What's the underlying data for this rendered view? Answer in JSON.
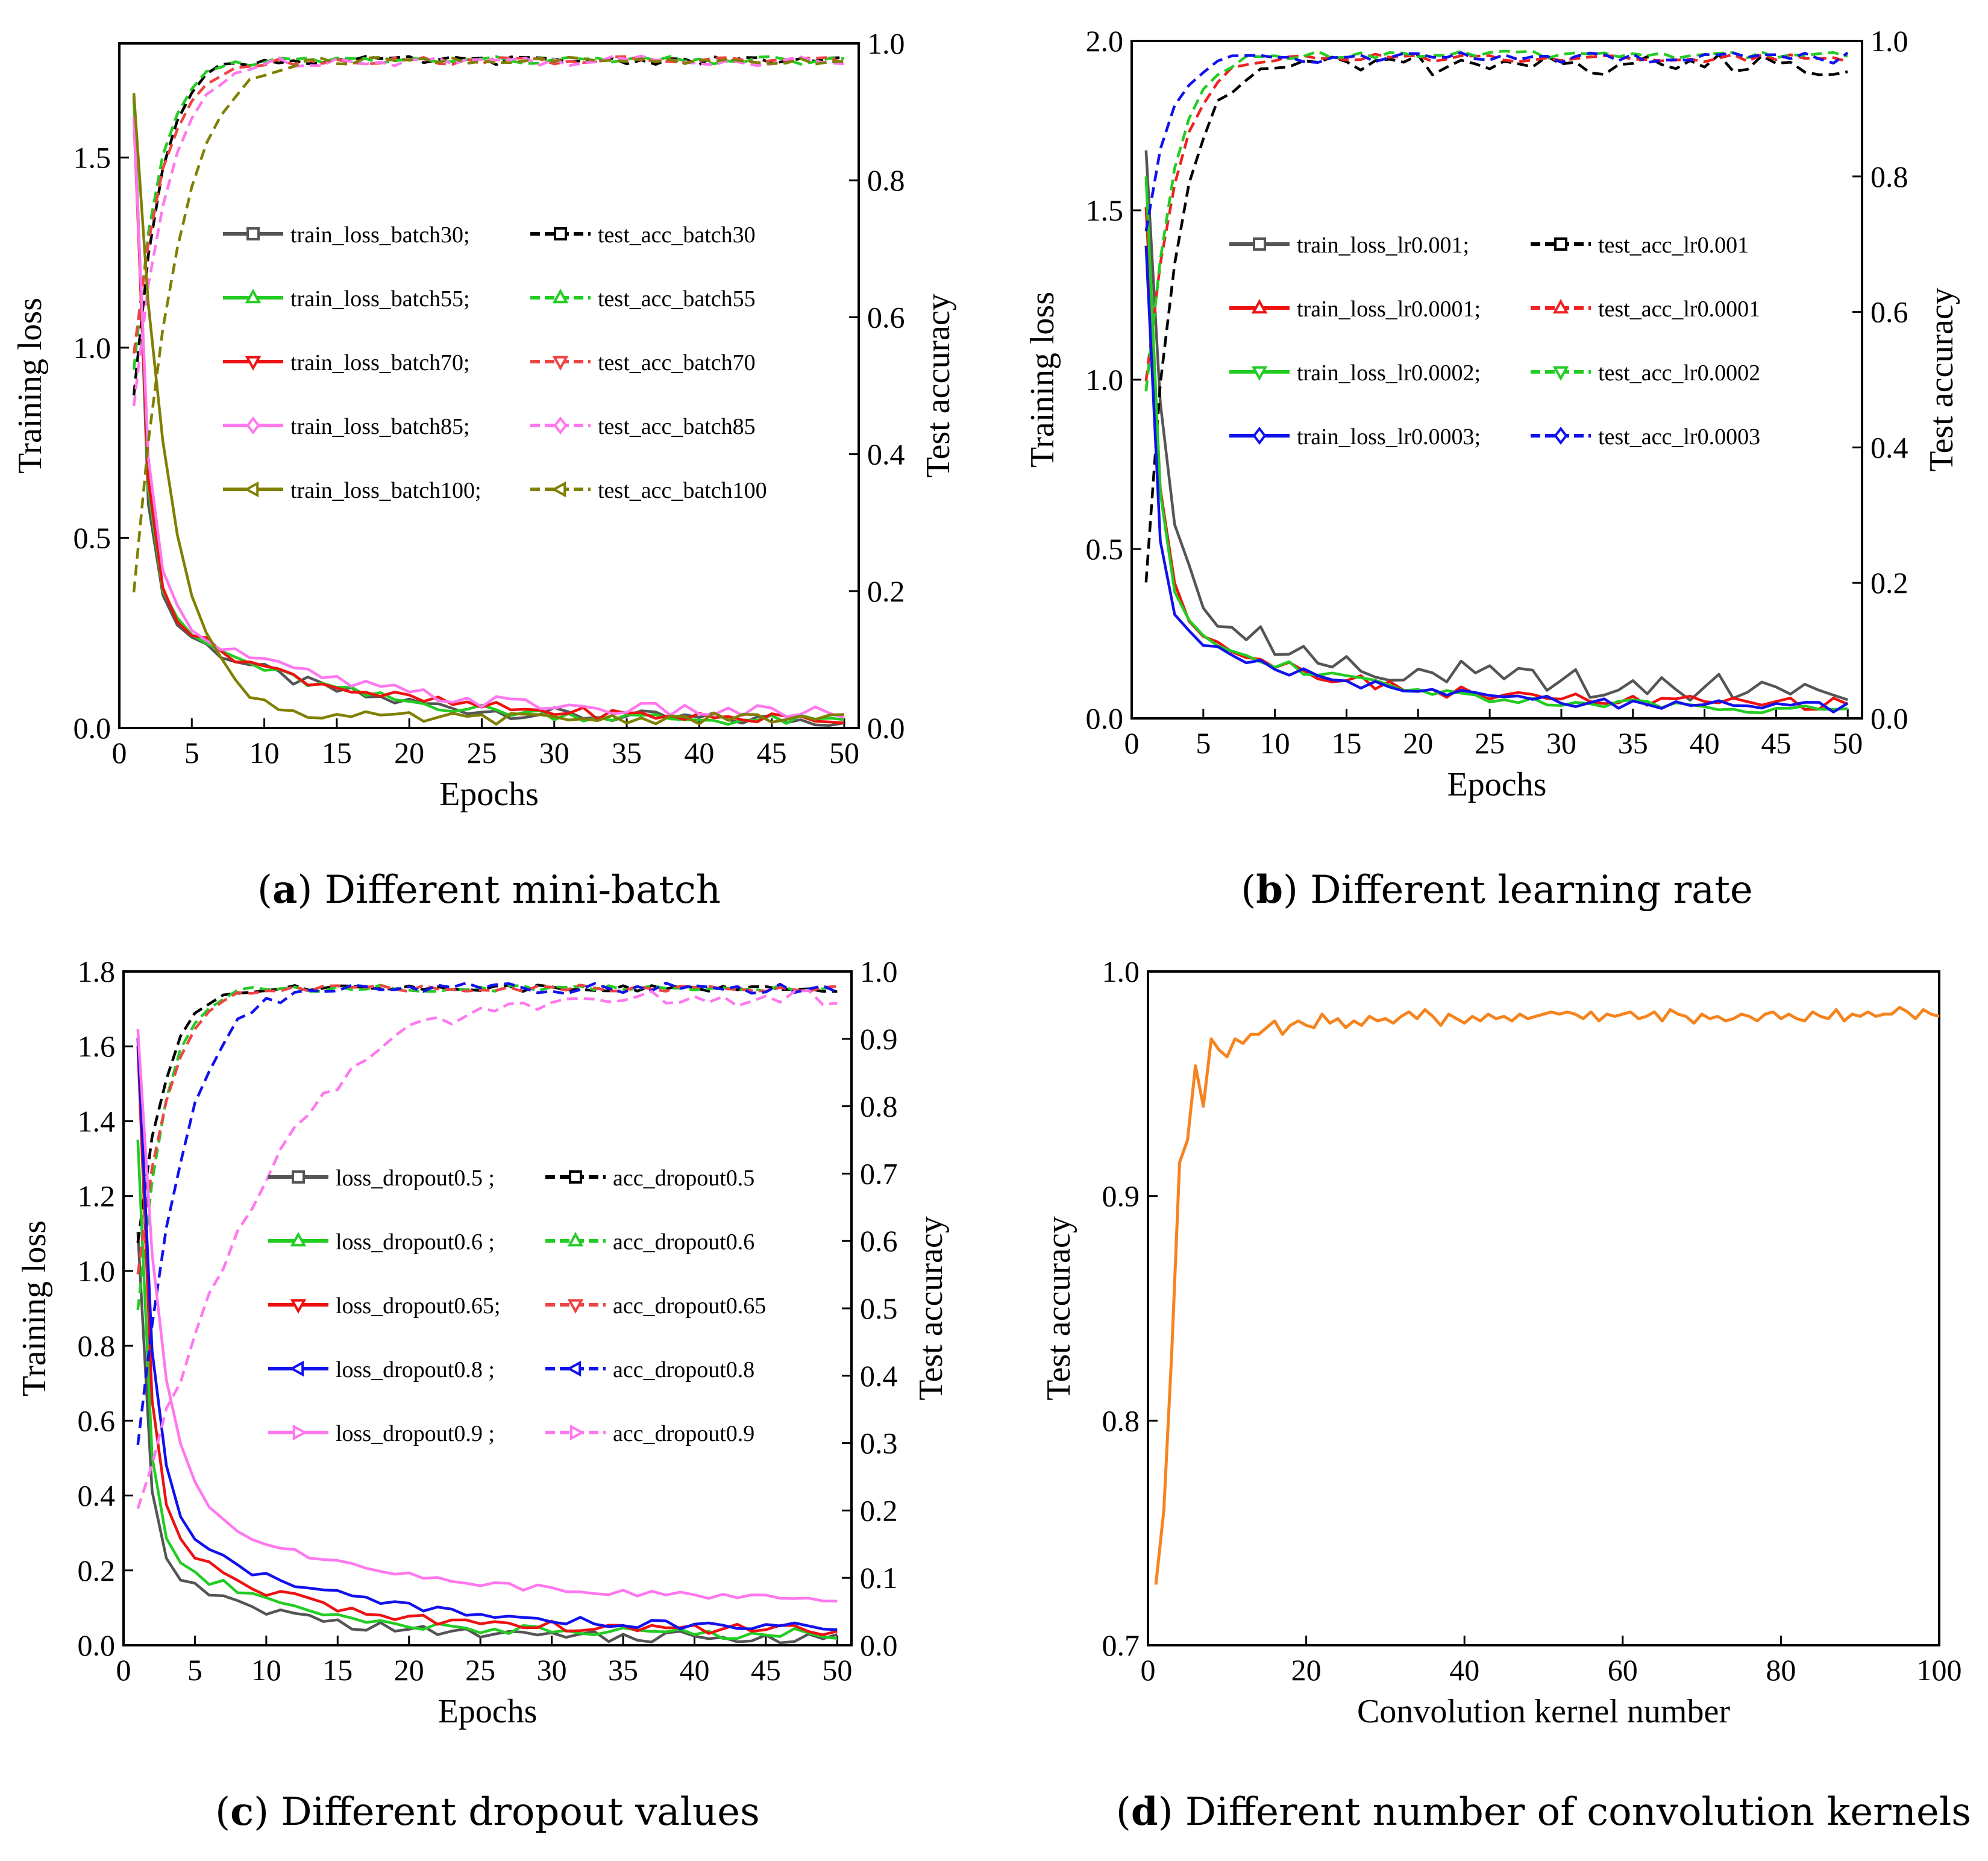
{
  "chart_data": [
    {
      "id": "a",
      "type": "line",
      "caption": {
        "letter": "a",
        "text": "Different mini-batch"
      },
      "xlabel": "Epochs",
      "ylabel": "Training loss",
      "y2label": "Test accuracy",
      "xlim": [
        0,
        51
      ],
      "ylim": [
        0,
        1.8
      ],
      "y2lim": [
        0,
        1.0
      ],
      "xticks": [
        0,
        5,
        10,
        15,
        20,
        25,
        30,
        35,
        40,
        45,
        50
      ],
      "yticks": [
        "0.0",
        "0.5",
        "1.0",
        "1.5"
      ],
      "y2ticks": [
        "0.0",
        "0.2",
        "0.4",
        "0.6",
        "0.8",
        "1.0"
      ],
      "legend_position": "center",
      "series": [
        {
          "name": "train_loss_batch30;",
          "color": "#555555",
          "axis": "left",
          "dash": false,
          "marker": "square",
          "shape": "loss",
          "p": [
            1.65,
            0.3,
            0.1,
            0.018
          ],
          "noise": 0.012
        },
        {
          "name": "test_acc_batch30",
          "color": "#000000",
          "axis": "right",
          "dash": true,
          "marker": "square",
          "shape": "acc",
          "p": [
            0.48,
            0.965,
            0.55,
            0.975
          ],
          "noise": 0.006
        },
        {
          "name": "train_loss_batch55;",
          "color": "#22cc22",
          "axis": "left",
          "dash": false,
          "marker": "tri-up",
          "shape": "loss",
          "p": [
            1.66,
            0.32,
            0.095,
            0.015
          ],
          "noise": 0.01
        },
        {
          "name": "test_acc_batch55",
          "color": "#22cc22",
          "axis": "right",
          "dash": true,
          "marker": "tri-up",
          "shape": "acc",
          "p": [
            0.52,
            0.965,
            0.55,
            0.975
          ],
          "noise": 0.006
        },
        {
          "name": "train_loss_batch70;",
          "color": "#ee1111",
          "axis": "left",
          "dash": false,
          "marker": "tri-down",
          "shape": "loss",
          "p": [
            1.6,
            0.35,
            0.09,
            0.02
          ],
          "noise": 0.01
        },
        {
          "name": "test_acc_batch70",
          "color": "#ee4444",
          "axis": "right",
          "dash": true,
          "marker": "tri-down",
          "shape": "acc",
          "p": [
            0.55,
            0.965,
            0.45,
            0.975
          ],
          "noise": 0.006
        },
        {
          "name": "train_loss_batch85;",
          "color": "#ff77ee",
          "axis": "left",
          "dash": false,
          "marker": "diamond",
          "shape": "loss",
          "p": [
            1.6,
            0.4,
            0.09,
            0.035
          ],
          "noise": 0.012
        },
        {
          "name": "test_acc_batch85",
          "color": "#ff77ee",
          "axis": "right",
          "dash": true,
          "marker": "diamond",
          "shape": "acc",
          "p": [
            0.47,
            0.965,
            0.4,
            0.975
          ],
          "noise": 0.008
        },
        {
          "name": "train_loss_batch100;",
          "color": "#7f7f00",
          "axis": "left",
          "dash": false,
          "marker": "tri-left",
          "shape": "loss",
          "p": [
            1.66,
            1.1,
            0.35,
            0.025
          ],
          "noise": 0.01
        },
        {
          "name": "test_acc_batch100",
          "color": "#7f7f00",
          "axis": "right",
          "dash": true,
          "marker": "tri-left",
          "shape": "acc",
          "p": [
            0.2,
            0.965,
            0.32,
            0.975
          ],
          "noise": 0.006
        }
      ]
    },
    {
      "id": "b",
      "type": "line",
      "caption": {
        "letter": "b",
        "text": "Different learning rate"
      },
      "xlabel": "Epochs",
      "ylabel": "Training loss",
      "y2label": "Test accuracy",
      "xlim": [
        0,
        51
      ],
      "ylim": [
        0,
        2.0
      ],
      "y2lim": [
        0,
        1.0
      ],
      "xticks": [
        0,
        5,
        10,
        15,
        20,
        25,
        30,
        35,
        40,
        45,
        50
      ],
      "yticks": [
        "0.0",
        "0.5",
        "1.0",
        "1.5",
        "2.0"
      ],
      "y2ticks": [
        "0.0",
        "0.2",
        "0.4",
        "0.6",
        "0.8",
        "1.0"
      ],
      "legend_position": "center",
      "series": [
        {
          "name": "train_loss_lr0.001;",
          "color": "#555555",
          "axis": "left",
          "dash": false,
          "marker": "square",
          "shape": "loss",
          "p": [
            1.7,
            0.55,
            0.1,
            0.09
          ],
          "noise": 0.03
        },
        {
          "name": "test_acc_lr0.001",
          "color": "#000000",
          "axis": "right",
          "dash": true,
          "marker": "square",
          "shape": "acc",
          "p": [
            0.2,
            0.955,
            0.45,
            0.965
          ],
          "noise": 0.015
        },
        {
          "name": "train_loss_lr0.0001;",
          "color": "#ee1111",
          "axis": "left",
          "dash": false,
          "marker": "tri-up",
          "shape": "loss",
          "p": [
            1.5,
            0.4,
            0.095,
            0.04
          ],
          "noise": 0.012
        },
        {
          "name": "test_acc_lr0.0001",
          "color": "#ee2222",
          "axis": "right",
          "dash": true,
          "marker": "tri-up",
          "shape": "acc",
          "p": [
            0.5,
            0.965,
            0.45,
            0.975
          ],
          "noise": 0.006
        },
        {
          "name": "train_loss_lr0.0002;",
          "color": "#22cc22",
          "axis": "left",
          "dash": false,
          "marker": "tri-down",
          "shape": "loss",
          "p": [
            1.6,
            0.35,
            0.09,
            0.025
          ],
          "noise": 0.01
        },
        {
          "name": "test_acc_lr0.0002",
          "color": "#22cc22",
          "axis": "right",
          "dash": true,
          "marker": "tri-down",
          "shape": "acc",
          "p": [
            0.48,
            0.965,
            0.5,
            0.98
          ],
          "noise": 0.006
        },
        {
          "name": "train_loss_lr0.0003;",
          "color": "#1111ee",
          "axis": "left",
          "dash": false,
          "marker": "diamond",
          "shape": "loss",
          "p": [
            1.4,
            0.3,
            0.09,
            0.03
          ],
          "noise": 0.01
        },
        {
          "name": "test_acc_lr0.0003",
          "color": "#1111ee",
          "axis": "right",
          "dash": true,
          "marker": "diamond",
          "shape": "acc",
          "p": [
            0.72,
            0.965,
            0.6,
            0.975
          ],
          "noise": 0.008
        }
      ]
    },
    {
      "id": "c",
      "type": "line",
      "caption": {
        "letter": "c",
        "text": "Different dropout values"
      },
      "xlabel": "Epochs",
      "ylabel": "Training loss",
      "y2label": "Test accuracy",
      "xlim": [
        0,
        51
      ],
      "ylim": [
        0,
        1.8
      ],
      "y2lim": [
        0,
        1.0
      ],
      "xticks": [
        0,
        5,
        10,
        15,
        20,
        25,
        30,
        35,
        40,
        45,
        50
      ],
      "yticks": [
        "0.0",
        "0.2",
        "0.4",
        "0.6",
        "0.8",
        "1.0",
        "1.2",
        "1.4",
        "1.6",
        "1.8"
      ],
      "y2ticks": [
        "0.0",
        "0.1",
        "0.2",
        "0.3",
        "0.4",
        "0.5",
        "0.6",
        "0.7",
        "0.8",
        "0.9",
        "1.0"
      ],
      "legend_position": "center",
      "series": [
        {
          "name": "loss_dropout0.5 ;",
          "color": "#555555",
          "axis": "left",
          "dash": false,
          "marker": "square",
          "shape": "loss",
          "p": [
            1.1,
            0.3,
            0.12,
            0.02
          ],
          "noise": 0.01
        },
        {
          "name": "acc_dropout0.5",
          "color": "#000000",
          "axis": "right",
          "dash": true,
          "marker": "square",
          "shape": "acc",
          "p": [
            0.6,
            0.97,
            0.5,
            0.975
          ],
          "noise": 0.005
        },
        {
          "name": "loss_dropout0.6 ;",
          "color": "#22cc22",
          "axis": "left",
          "dash": false,
          "marker": "tri-up",
          "shape": "loss",
          "p": [
            1.35,
            0.3,
            0.12,
            0.03
          ],
          "noise": 0.01
        },
        {
          "name": "acc_dropout0.6",
          "color": "#22cc22",
          "axis": "right",
          "dash": true,
          "marker": "tri-up",
          "shape": "acc",
          "p": [
            0.5,
            0.97,
            0.5,
            0.975
          ],
          "noise": 0.005
        },
        {
          "name": "loss_dropout0.65;",
          "color": "#ee1111",
          "axis": "left",
          "dash": false,
          "marker": "tri-down",
          "shape": "loss",
          "p": [
            1.6,
            0.35,
            0.12,
            0.04
          ],
          "noise": 0.01
        },
        {
          "name": "acc_dropout0.65",
          "color": "#ee4444",
          "axis": "right",
          "dash": true,
          "marker": "tri-down",
          "shape": "acc",
          "p": [
            0.55,
            0.97,
            0.45,
            0.975
          ],
          "noise": 0.005
        },
        {
          "name": "loss_dropout0.8 ;",
          "color": "#1111ee",
          "axis": "left",
          "dash": false,
          "marker": "tri-left",
          "shape": "loss",
          "p": [
            1.62,
            0.45,
            0.09,
            0.045
          ],
          "noise": 0.008
        },
        {
          "name": "acc_dropout0.8",
          "color": "#1111ee",
          "axis": "right",
          "dash": true,
          "marker": "tri-left",
          "shape": "acc",
          "p": [
            0.3,
            0.97,
            0.3,
            0.975
          ],
          "noise": 0.008
        },
        {
          "name": "loss_dropout0.9 ;",
          "color": "#ff77ee",
          "axis": "left",
          "dash": false,
          "marker": "tri-right",
          "shape": "loss",
          "p": [
            1.65,
            0.7,
            0.08,
            0.12
          ],
          "noise": 0.006
        },
        {
          "name": "acc_dropout0.9",
          "color": "#ff77ee",
          "axis": "right",
          "dash": true,
          "marker": "tri-right",
          "shape": "acc",
          "p": [
            0.21,
            0.965,
            0.09,
            0.96
          ],
          "noise": 0.012
        }
      ]
    },
    {
      "id": "d",
      "type": "line",
      "caption": {
        "letter": "d",
        "text": "Different number of convolution kernels"
      },
      "xlabel": "Convolution kernel number",
      "ylabel": "Test accuracy",
      "xlim": [
        0,
        100
      ],
      "ylim": [
        0.7,
        1.0
      ],
      "xticks": [
        0,
        20,
        40,
        60,
        80,
        100
      ],
      "yticks": [
        "0.7",
        "0.8",
        "0.9",
        "1.0"
      ],
      "series": [
        {
          "name": "test_accuracy",
          "color": "#f5841f",
          "axis": "left",
          "dash": false,
          "marker": "none",
          "x_start": 1,
          "values": [
            0.727,
            0.76,
            0.83,
            0.915,
            0.925,
            0.958,
            0.94,
            0.97,
            0.965,
            0.962,
            0.97,
            0.968,
            0.972,
            0.972,
            0.975,
            0.978,
            0.972,
            0.976,
            0.978,
            0.976,
            0.975,
            0.981,
            0.977,
            0.979,
            0.975,
            0.978,
            0.976,
            0.98,
            0.978,
            0.979,
            0.977,
            0.98,
            0.982,
            0.979,
            0.983,
            0.98,
            0.976,
            0.981,
            0.979,
            0.977,
            0.98,
            0.978,
            0.981,
            0.979,
            0.98,
            0.978,
            0.981,
            0.979,
            0.98,
            0.981,
            0.982,
            0.981,
            0.982,
            0.981,
            0.979,
            0.982,
            0.978,
            0.981,
            0.98,
            0.981,
            0.982,
            0.979,
            0.98,
            0.982,
            0.978,
            0.983,
            0.981,
            0.98,
            0.977,
            0.981,
            0.979,
            0.98,
            0.978,
            0.979,
            0.981,
            0.98,
            0.978,
            0.981,
            0.982,
            0.979,
            0.981,
            0.979,
            0.978,
            0.982,
            0.98,
            0.979,
            0.983,
            0.978,
            0.981,
            0.98,
            0.982,
            0.98,
            0.981,
            0.981,
            0.984,
            0.982,
            0.979,
            0.983,
            0.981,
            0.98
          ]
        }
      ]
    }
  ]
}
